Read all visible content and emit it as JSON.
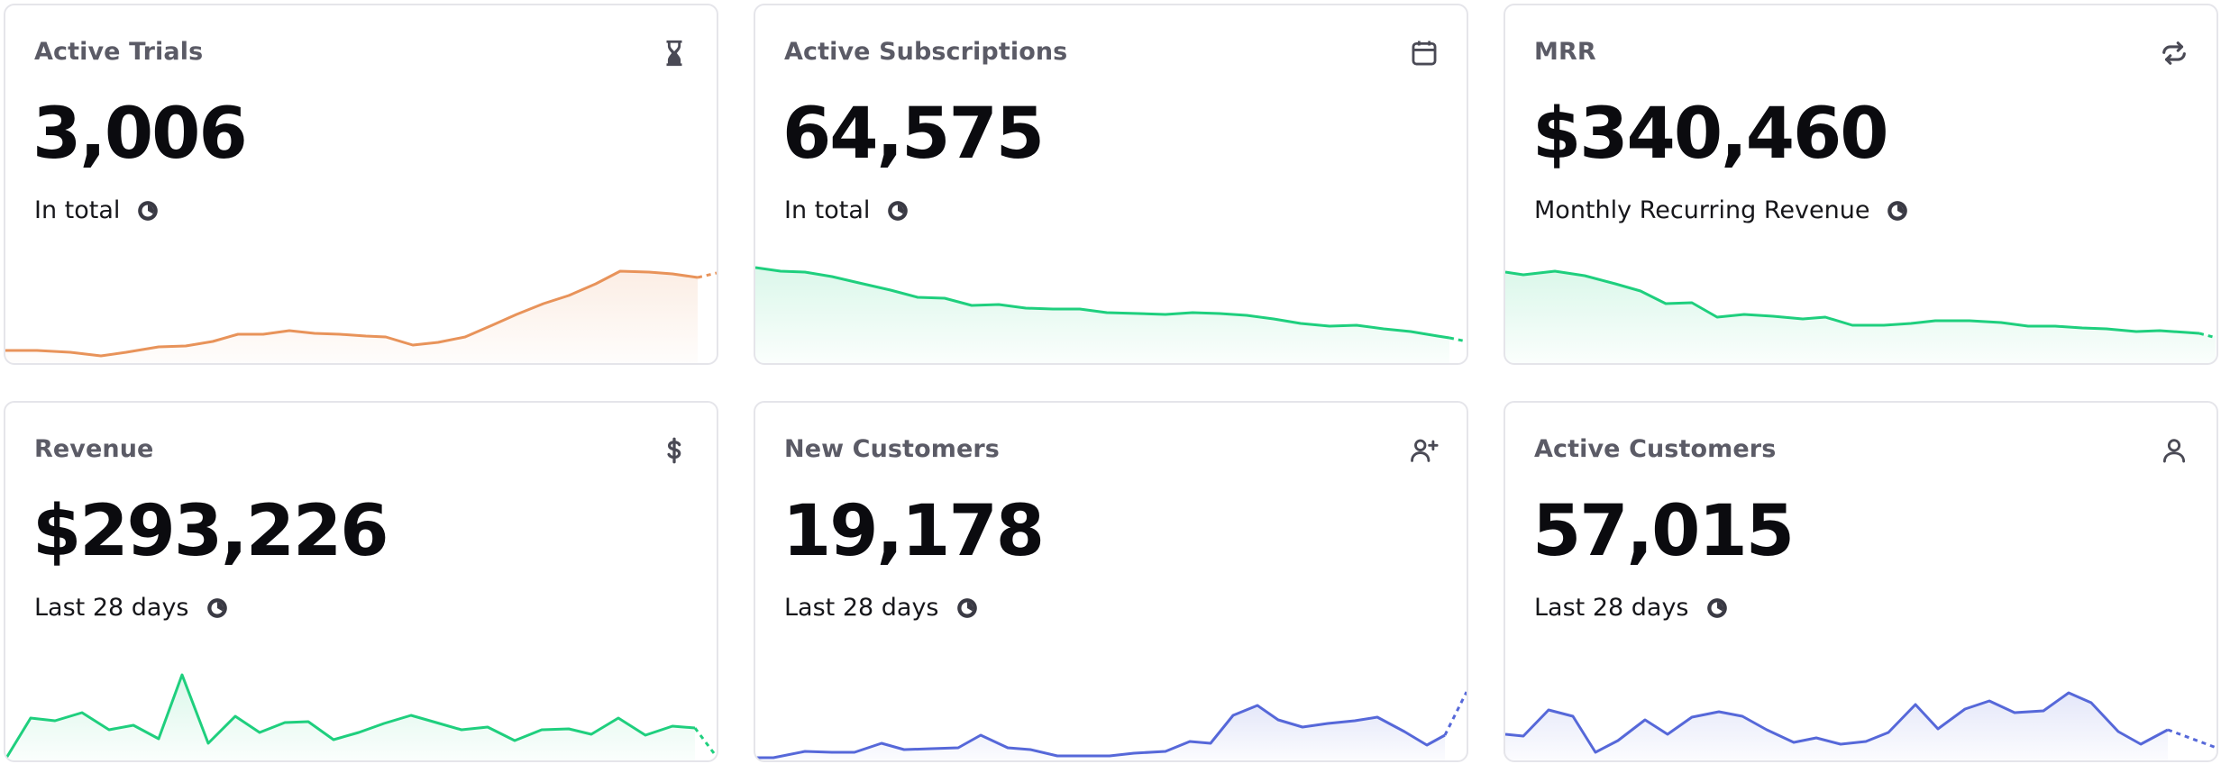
{
  "cards": [
    {
      "title": "Active Trials",
      "icon": "hourglass-icon",
      "value": "3,006",
      "sub": "In total",
      "color": "#e8935a"
    },
    {
      "title": "Active Subscriptions",
      "icon": "calendar-icon",
      "value": "64,575",
      "sub": "In total",
      "color": "#1fcf7e"
    },
    {
      "title": "MRR",
      "icon": "refresh-icon",
      "value": "$340,460",
      "sub": "Monthly Recurring Revenue",
      "color": "#1fcf7e"
    },
    {
      "title": "Revenue",
      "icon": "dollar-icon",
      "value": "$293,226",
      "sub": "Last 28 days",
      "color": "#1fcf7e"
    },
    {
      "title": "New Customers",
      "icon": "user-plus-icon",
      "value": "19,178",
      "sub": "Last 28 days",
      "color": "#5668d9"
    },
    {
      "title": "Active Customers",
      "icon": "user-icon",
      "value": "57,015",
      "sub": "Last 28 days",
      "color": "#5668d9"
    }
  ]
}
